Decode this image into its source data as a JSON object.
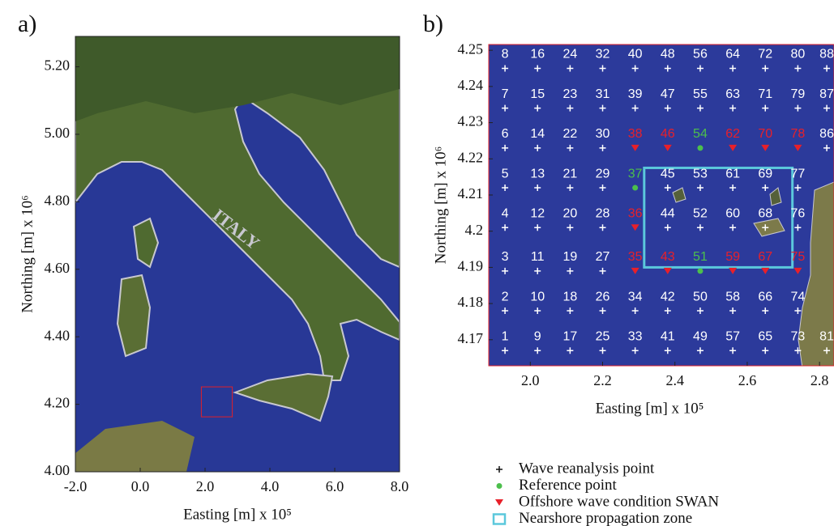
{
  "chart_data": [
    {
      "type": "map",
      "panel_label": "a)",
      "annotation": "ITALY",
      "xlabel": "Easting [m] x 10⁵",
      "ylabel": "Northing [m] x 10⁶",
      "xlim": [
        -2.0,
        8.0
      ],
      "ylim": [
        4.0,
        5.29
      ],
      "xticks": [
        {
          "value": -2,
          "label": "-2.0"
        },
        {
          "value": 0,
          "label": "0.0"
        },
        {
          "value": 2,
          "label": "2.0"
        },
        {
          "value": 4,
          "label": "4.0"
        },
        {
          "value": 6,
          "label": "6.0"
        },
        {
          "value": 8,
          "label": "8.0"
        }
      ],
      "yticks": [
        {
          "value": 4,
          "label": "4.00"
        },
        {
          "value": 4.2,
          "label": "4.20"
        },
        {
          "value": 4.4,
          "label": "4.40"
        },
        {
          "value": 4.6,
          "label": "4.60"
        },
        {
          "value": 4.8,
          "label": "4.80"
        },
        {
          "value": 5,
          "label": "5.00"
        },
        {
          "value": 5.2,
          "label": "5.20"
        }
      ],
      "region_color": "#e0202a"
    },
    {
      "type": "scatter",
      "panel_label": "b)",
      "xlabel": "Easting [m] x 10⁵",
      "ylabel": "Northing [m] x 10⁶",
      "xlim": [
        1.885,
        2.84
      ],
      "ylim": [
        4.1628,
        4.2516
      ],
      "xticks": [
        {
          "value": 2,
          "label": "2.0"
        },
        2.2,
        2.4,
        2.6,
        2.8
      ],
      "yticks": [
        4.17,
        4.18,
        4.19,
        4.2,
        4.21,
        4.22,
        4.23,
        4.24,
        4.25
      ],
      "series": [
        {
          "name": "Wave reanalysis point",
          "color": "#ffffff",
          "marker": "plus",
          "labels": [
            "1",
            "2",
            "3",
            "4",
            "5",
            "6",
            "7",
            "8",
            "9",
            "10",
            "11",
            "12",
            "13",
            "14",
            "15",
            "16",
            "17",
            "18",
            "19",
            "20",
            "21",
            "22",
            "23",
            "24",
            "25",
            "26",
            "27",
            "28",
            "29",
            "30",
            "31",
            "32",
            "33",
            "34",
            "39",
            "40",
            "41",
            "42",
            "44",
            "45",
            "47",
            "48",
            "49",
            "50",
            "52",
            "53",
            "55",
            "56",
            "57",
            "58",
            "60",
            "61",
            "63",
            "64",
            "65",
            "66",
            "68",
            "69",
            "71",
            "72",
            "73",
            "74",
            "76",
            "77",
            "79",
            "80",
            "81",
            "86",
            "87",
            "88"
          ],
          "x": [
            1.93,
            1.93,
            1.93,
            1.93,
            1.93,
            1.93,
            1.93,
            1.93,
            2.02,
            2.02,
            2.02,
            2.02,
            2.02,
            2.02,
            2.02,
            2.02,
            2.11,
            2.11,
            2.11,
            2.11,
            2.11,
            2.11,
            2.11,
            2.11,
            2.2,
            2.2,
            2.2,
            2.2,
            2.2,
            2.2,
            2.2,
            2.2,
            2.29,
            2.29,
            2.29,
            2.29,
            2.38,
            2.38,
            2.38,
            2.38,
            2.38,
            2.38,
            2.47,
            2.47,
            2.47,
            2.47,
            2.47,
            2.47,
            2.56,
            2.56,
            2.56,
            2.56,
            2.56,
            2.56,
            2.65,
            2.65,
            2.65,
            2.65,
            2.65,
            2.65,
            2.74,
            2.74,
            2.74,
            2.74,
            2.74,
            2.74,
            2.82,
            2.82,
            2.82,
            2.82
          ],
          "y": [
            4.167,
            4.178,
            4.189,
            4.201,
            4.212,
            4.223,
            4.234,
            4.245,
            4.167,
            4.178,
            4.189,
            4.201,
            4.212,
            4.223,
            4.234,
            4.245,
            4.167,
            4.178,
            4.189,
            4.201,
            4.212,
            4.223,
            4.234,
            4.245,
            4.167,
            4.178,
            4.189,
            4.201,
            4.212,
            4.223,
            4.234,
            4.245,
            4.167,
            4.178,
            4.234,
            4.245,
            4.167,
            4.178,
            4.201,
            4.212,
            4.234,
            4.245,
            4.167,
            4.178,
            4.201,
            4.212,
            4.234,
            4.245,
            4.167,
            4.178,
            4.201,
            4.212,
            4.234,
            4.245,
            4.167,
            4.178,
            4.201,
            4.212,
            4.234,
            4.245,
            4.167,
            4.178,
            4.201,
            4.212,
            4.234,
            4.245,
            4.167,
            4.223,
            4.234,
            4.245
          ]
        },
        {
          "name": "Reference point",
          "color": "#4cbf4c",
          "marker": "circle",
          "labels": [
            "37",
            "51",
            "54"
          ],
          "x": [
            2.29,
            2.47,
            2.47
          ],
          "y": [
            4.212,
            4.189,
            4.223
          ]
        },
        {
          "name": "Offshore wave condition SWAN",
          "color": "#e8202a",
          "marker": "triangle-down",
          "labels": [
            "35",
            "36",
            "38",
            "43",
            "46",
            "59",
            "62",
            "67",
            "70",
            "75",
            "78"
          ],
          "x": [
            2.29,
            2.29,
            2.29,
            2.38,
            2.38,
            2.56,
            2.56,
            2.65,
            2.65,
            2.74,
            2.74
          ],
          "y": [
            4.189,
            4.201,
            4.223,
            4.189,
            4.223,
            4.189,
            4.223,
            4.189,
            4.223,
            4.189,
            4.223
          ]
        }
      ],
      "zone": {
        "name": "Nearshore propagation zone",
        "color": "#5bc8dc",
        "xlim": [
          2.315,
          2.725
        ],
        "ylim": [
          4.19,
          4.2175
        ]
      }
    }
  ]
}
